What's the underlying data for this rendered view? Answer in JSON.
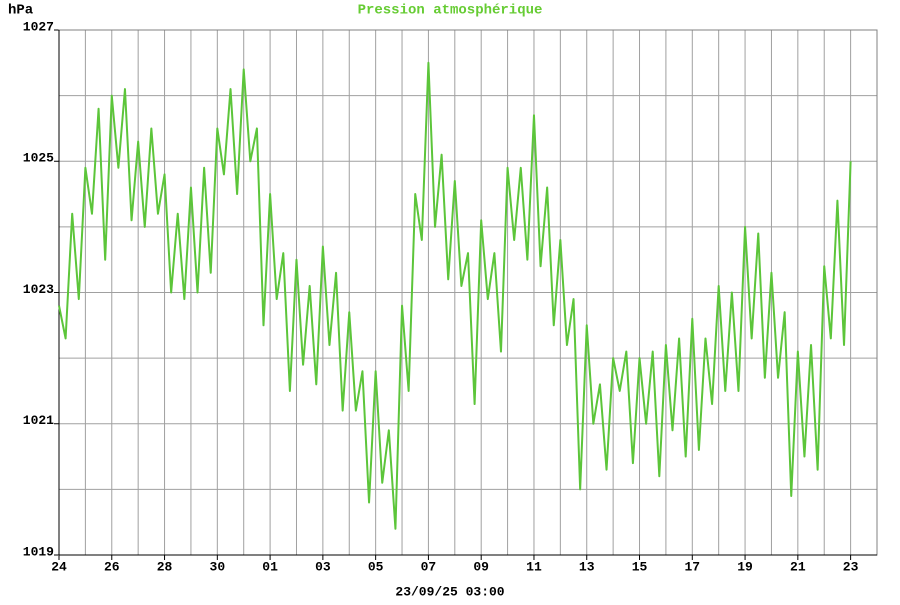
{
  "chart_data": {
    "type": "line",
    "title": "Pression atmosphérique",
    "ylabel": "hPa",
    "xlabel": "23/09/25 03:00",
    "color": "#5cc53a",
    "grid": true,
    "xlim": [
      0,
      31
    ],
    "ylim": [
      1019,
      1027
    ],
    "xticks": [
      {
        "value": 0,
        "label": "24"
      },
      {
        "value": 2,
        "label": "26"
      },
      {
        "value": 4,
        "label": "28"
      },
      {
        "value": 6,
        "label": "30"
      },
      {
        "value": 8,
        "label": "01"
      },
      {
        "value": 10,
        "label": "03"
      },
      {
        "value": 12,
        "label": "05"
      },
      {
        "value": 14,
        "label": "07"
      },
      {
        "value": 16,
        "label": "09"
      },
      {
        "value": 18,
        "label": "11"
      },
      {
        "value": 20,
        "label": "13"
      },
      {
        "value": 22,
        "label": "15"
      },
      {
        "value": 24,
        "label": "17"
      },
      {
        "value": 26,
        "label": "19"
      },
      {
        "value": 28,
        "label": "21"
      },
      {
        "value": 30,
        "label": "23"
      }
    ],
    "xminor": [
      1,
      3,
      5,
      7,
      9,
      11,
      13,
      15,
      17,
      19,
      21,
      23,
      25,
      27,
      29,
      31
    ],
    "yticks": [
      1019,
      1021,
      1023,
      1025,
      1027
    ],
    "yminor": [
      1020,
      1022,
      1024,
      1026
    ],
    "x": [
      0,
      0.25,
      0.5,
      0.75,
      1,
      1.25,
      1.5,
      1.75,
      2,
      2.25,
      2.5,
      2.75,
      3,
      3.25,
      3.5,
      3.75,
      4,
      4.25,
      4.5,
      4.75,
      5,
      5.25,
      5.5,
      5.75,
      6,
      6.25,
      6.5,
      6.75,
      7,
      7.25,
      7.5,
      7.75,
      8,
      8.25,
      8.5,
      8.75,
      9,
      9.25,
      9.5,
      9.75,
      10,
      10.25,
      10.5,
      10.75,
      11,
      11.25,
      11.5,
      11.75,
      12,
      12.25,
      12.5,
      12.75,
      13,
      13.25,
      13.5,
      13.75,
      14,
      14.25,
      14.5,
      14.75,
      15,
      15.25,
      15.5,
      15.75,
      16,
      16.25,
      16.5,
      16.75,
      17,
      17.25,
      17.5,
      17.75,
      18,
      18.25,
      18.5,
      18.75,
      19,
      19.25,
      19.5,
      19.75,
      20,
      20.25,
      20.5,
      20.75,
      21,
      21.25,
      21.5,
      21.75,
      22,
      22.25,
      22.5,
      22.75,
      23,
      23.25,
      23.5,
      23.75,
      24,
      24.25,
      24.5,
      24.75,
      25,
      25.25,
      25.5,
      25.75,
      26,
      26.25,
      26.5,
      26.75,
      27,
      27.25,
      27.5,
      27.75,
      28,
      28.25,
      28.5,
      28.75,
      29,
      29.25,
      29.5,
      29.75,
      30
    ],
    "values": [
      1022.8,
      1022.3,
      1024.2,
      1022.9,
      1024.9,
      1024.2,
      1025.8,
      1023.5,
      1026.0,
      1024.9,
      1026.1,
      1024.1,
      1025.3,
      1024.0,
      1025.5,
      1024.2,
      1024.8,
      1023.0,
      1024.2,
      1022.9,
      1024.6,
      1023.0,
      1024.9,
      1023.3,
      1025.5,
      1024.8,
      1026.1,
      1024.5,
      1026.4,
      1025.0,
      1025.5,
      1022.5,
      1024.5,
      1022.9,
      1023.6,
      1021.5,
      1023.5,
      1021.9,
      1023.1,
      1021.6,
      1023.7,
      1022.2,
      1023.3,
      1021.2,
      1022.7,
      1021.2,
      1021.8,
      1019.8,
      1021.8,
      1020.1,
      1020.9,
      1019.4,
      1022.8,
      1021.5,
      1024.5,
      1023.8,
      1026.5,
      1024.0,
      1025.1,
      1023.2,
      1024.7,
      1023.1,
      1023.6,
      1021.3,
      1024.1,
      1022.9,
      1023.6,
      1022.1,
      1024.9,
      1023.8,
      1024.9,
      1023.5,
      1025.7,
      1023.4,
      1024.6,
      1022.5,
      1023.8,
      1022.2,
      1022.9,
      1020.0,
      1022.5,
      1021.0,
      1021.6,
      1020.3,
      1022.0,
      1021.5,
      1022.1,
      1020.4,
      1022.0,
      1021.0,
      1022.1,
      1020.2,
      1022.2,
      1020.9,
      1022.3,
      1020.5,
      1022.6,
      1020.6,
      1022.3,
      1021.3,
      1023.1,
      1021.5,
      1023.0,
      1021.5,
      1024.0,
      1022.3,
      1023.9,
      1021.7,
      1023.3,
      1021.7,
      1022.7,
      1019.9,
      1022.1,
      1020.5,
      1022.2,
      1020.3,
      1023.4,
      1022.3,
      1024.4,
      1022.2,
      1025.0
    ]
  }
}
